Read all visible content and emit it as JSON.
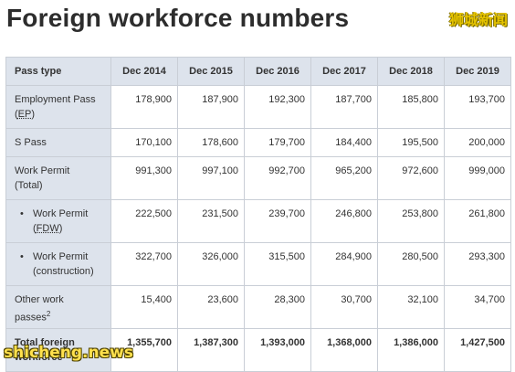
{
  "title": "Foreign workforce numbers",
  "watermark_top": "狮城新闻",
  "watermark_bottom": "shicheng.news",
  "table": {
    "headers": [
      "Pass type",
      "Dec 2014",
      "Dec 2015",
      "Dec 2016",
      "Dec 2017",
      "Dec 2018",
      "Dec 2019"
    ],
    "rows": [
      {
        "label": "Employment Pass",
        "label_sub": "EP",
        "values": [
          "178,900",
          "187,900",
          "192,300",
          "187,700",
          "185,800",
          "193,700"
        ]
      },
      {
        "label": "S Pass",
        "values": [
          "170,100",
          "178,600",
          "179,700",
          "184,400",
          "195,500",
          "200,000"
        ]
      },
      {
        "label": "Work Permit",
        "label_sub": "(Total)",
        "values": [
          "991,300",
          "997,100",
          "992,700",
          "965,200",
          "972,600",
          "999,000"
        ]
      },
      {
        "label": "Work Permit",
        "label_sub": "FDW",
        "bullet": "•",
        "values": [
          "222,500",
          "231,500",
          "239,700",
          "246,800",
          "253,800",
          "261,800"
        ]
      },
      {
        "label": "Work Permit",
        "label_sub": "(construction)",
        "bullet": "•",
        "values": [
          "322,700",
          "326,000",
          "315,500",
          "284,900",
          "280,500",
          "293,300"
        ]
      },
      {
        "label": "Other work",
        "label_sub": "passes",
        "sup": "2",
        "values": [
          "15,400",
          "23,600",
          "28,300",
          "30,700",
          "32,100",
          "34,700"
        ]
      },
      {
        "label": "Total foreign",
        "label_sub": "workforce",
        "values": [
          "1,355,700",
          "1,387,300",
          "1,393,000",
          "1,368,000",
          "1,386,000",
          "1,427,500"
        ]
      }
    ]
  },
  "colors": {
    "header_bg": "#dde3ec",
    "border": "#c9ced6",
    "watermark": "#e6c400"
  }
}
